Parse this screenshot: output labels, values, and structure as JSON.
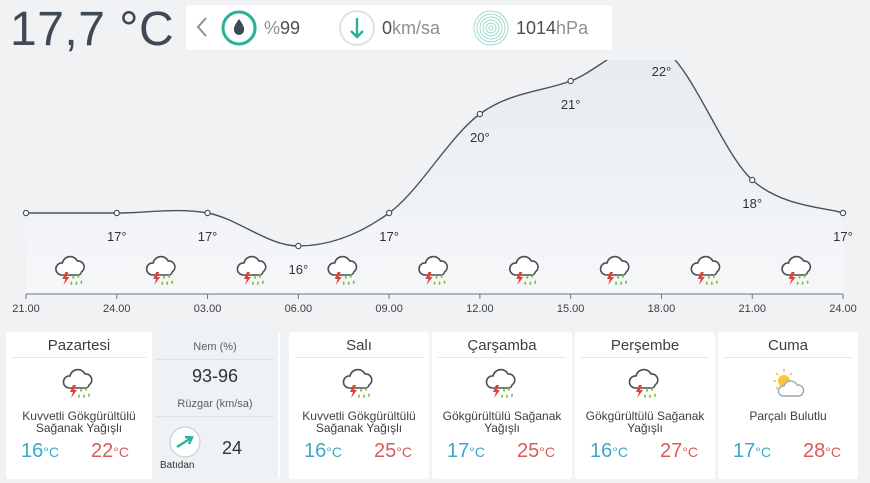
{
  "current": {
    "temperature": "17,7 °C",
    "humidity_prefix": "%",
    "humidity": "99",
    "wind_value": "0",
    "wind_unit": "km/sa",
    "pressure_value": "1014",
    "pressure_unit": "hPa"
  },
  "colors": {
    "accent": "#2bb09a",
    "min_temp": "#3ea6c9",
    "max_temp": "#d95a5a",
    "curve": "#4a5260",
    "lightning": "#e0413a",
    "rain": "#7ac24a"
  },
  "chart_data": {
    "type": "area",
    "x": [
      "21.00",
      "24.00",
      "03.00",
      "06.00",
      "09.00",
      "12.00",
      "15.00",
      "18.00",
      "21.00",
      "24.00"
    ],
    "values": [
      17,
      17,
      17,
      16,
      17,
      20,
      21,
      22,
      18,
      17
    ],
    "point_labels": [
      "",
      "17°",
      "17°",
      "16°",
      "17°",
      "20°",
      "21°",
      "22°",
      "18°",
      "17°"
    ],
    "icons": [
      "thunder-rain-icon",
      "thunder-rain-icon",
      "thunder-rain-icon",
      "thunder-rain-icon",
      "thunder-rain-icon",
      "thunder-rain-icon",
      "thunder-rain-icon",
      "thunder-rain-icon",
      "thunder-rain-icon"
    ]
  },
  "today": {
    "day": "Pazartesi",
    "desc_line1": "Kuvvetli Gökgürültülü",
    "desc_line2": "Sağanak Yağışlı",
    "min": "16",
    "max": "22",
    "unit": "°C",
    "icon": "thunder-rain-icon",
    "humidity_label": "Nem (%)",
    "humidity": "93-96",
    "wind_label": "Rüzgar (km/sa)",
    "wind_dir": "Batıdan",
    "wind_speed": "24"
  },
  "forecast": [
    {
      "day": "Salı",
      "desc_line1": "Kuvvetli Gökgürültülü",
      "desc_line2": "Sağanak Yağışlı",
      "min": "16",
      "max": "25",
      "unit": "°C",
      "icon": "thunder-rain-icon"
    },
    {
      "day": "Çarşamba",
      "desc_line1": "Gökgürültülü Sağanak",
      "desc_line2": "Yağışlı",
      "min": "17",
      "max": "25",
      "unit": "°C",
      "icon": "thunder-rain-icon"
    },
    {
      "day": "Perşembe",
      "desc_line1": "Gökgürültülü Sağanak",
      "desc_line2": "Yağışlı",
      "min": "16",
      "max": "27",
      "unit": "°C",
      "icon": "thunder-rain-icon"
    },
    {
      "day": "Cuma",
      "desc_line1": "Parçalı Bulutlu",
      "desc_line2": "",
      "min": "17",
      "max": "28",
      "unit": "°C",
      "icon": "partly-cloudy-icon"
    }
  ]
}
